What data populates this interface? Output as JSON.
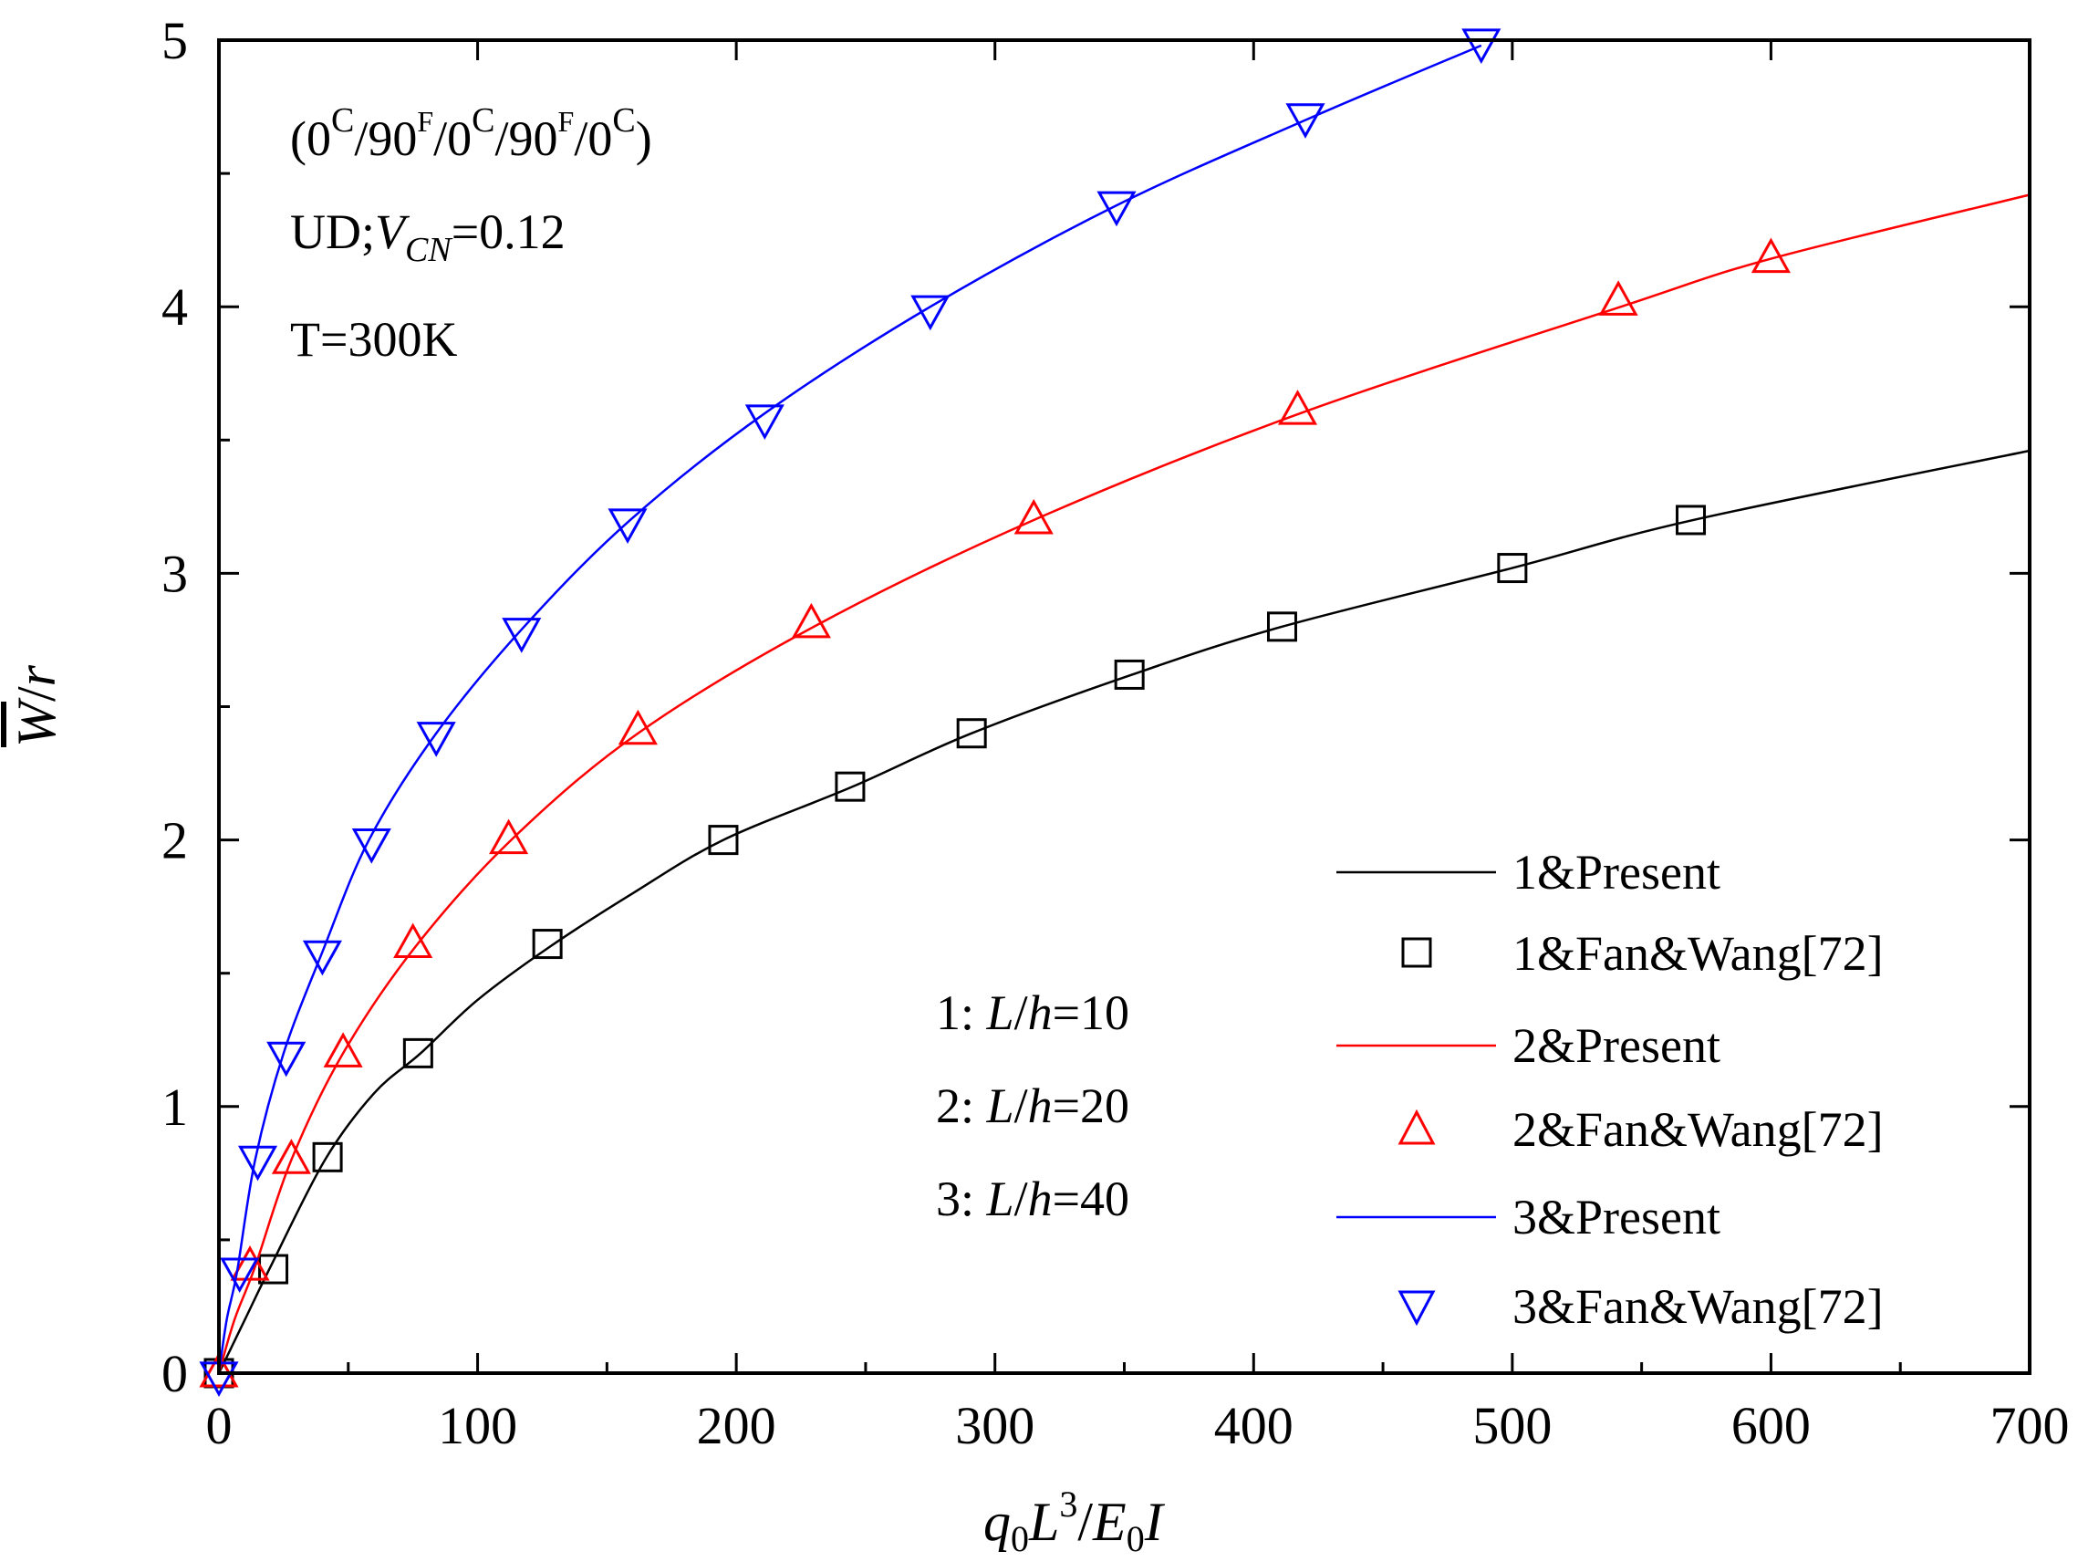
{
  "chart_data": {
    "type": "line",
    "xlabel": "q0L3/E0I",
    "ylabel": "W̄/r",
    "xlim": [
      0,
      700
    ],
    "ylim": [
      0,
      5
    ],
    "x_ticks": [
      "0",
      "100",
      "200",
      "300",
      "400",
      "500",
      "600",
      "700"
    ],
    "y_ticks": [
      "0",
      "1",
      "2",
      "3",
      "4",
      "5"
    ],
    "annotations": {
      "layup": {
        "p1": "(0",
        "s1": "C",
        "p2": "/90",
        "s2": "F",
        "p3": "/0",
        "s3": "C",
        "p4": "/90",
        "s4": "F",
        "p5": "/0",
        "s5": "C",
        "p6": ")"
      },
      "material": {
        "prefix": "UD;",
        "var": "V",
        "sub": "CN",
        "suffix": "=0.12"
      },
      "temperature": "T=300K"
    },
    "cases": [
      {
        "num": "1",
        "sep": ": ",
        "L": "L",
        "slash": "/",
        "h": "h",
        "val": "=10"
      },
      {
        "num": "2",
        "sep": ": ",
        "L": "L",
        "slash": "/",
        "h": "h",
        "val": "=20"
      },
      {
        "num": "3",
        "sep": ": ",
        "L": "L",
        "slash": "/",
        "h": "h",
        "val": "=40"
      }
    ],
    "legend": [
      {
        "label": "1&Present",
        "kind": "line",
        "color": "#000000"
      },
      {
        "label": "1&Fan&Wang[72]",
        "kind": "square",
        "color": "#000000"
      },
      {
        "label": "2&Present",
        "kind": "line",
        "color": "#ff0000"
      },
      {
        "label": "2&Fan&Wang[72]",
        "kind": "triangle-up",
        "color": "#ff0000"
      },
      {
        "label": "3&Present",
        "kind": "line",
        "color": "#0000ff"
      },
      {
        "label": "3&Fan&Wang[72]",
        "kind": "triangle-down",
        "color": "#0000ff"
      }
    ],
    "series": [
      {
        "name": "1&Present",
        "type": "line",
        "color": "#000000",
        "x": [
          0,
          10,
          20,
          41,
          60,
          78,
          100,
          128,
          160,
          195,
          245,
          291,
          353,
          411,
          500,
          570,
          700
        ],
        "y": [
          0,
          0.2,
          0.4,
          0.8,
          1.05,
          1.2,
          1.4,
          1.6,
          1.8,
          2.0,
          2.2,
          2.4,
          2.62,
          2.8,
          3.02,
          3.2,
          3.46
        ]
      },
      {
        "name": "1&Fan&Wang[72]",
        "type": "scatter",
        "marker": "square",
        "color": "#000000",
        "x": [
          0,
          21,
          42,
          77,
          127,
          195,
          244,
          291,
          352,
          411,
          500,
          569
        ],
        "y": [
          0,
          0.39,
          0.81,
          1.2,
          1.61,
          2.0,
          2.2,
          2.4,
          2.62,
          2.8,
          3.02,
          3.2
        ]
      },
      {
        "name": "2&Present",
        "type": "line",
        "color": "#ff0000",
        "x": [
          0,
          6,
          14,
          28,
          48,
          76,
          113,
          162,
          230,
          315,
          418,
          542,
          600,
          700
        ],
        "y": [
          0,
          0.2,
          0.4,
          0.8,
          1.2,
          1.6,
          2.0,
          2.4,
          2.8,
          3.2,
          3.6,
          4.0,
          4.18,
          4.42
        ]
      },
      {
        "name": "2&Fan&Wang[72]",
        "type": "scatter",
        "marker": "triangle-up",
        "color": "#ff0000",
        "x": [
          0,
          12,
          28,
          48,
          75,
          112,
          162,
          229,
          315,
          417,
          541,
          600
        ],
        "y": [
          0,
          0.4,
          0.8,
          1.2,
          1.61,
          2.0,
          2.41,
          2.81,
          3.2,
          3.61,
          4.02,
          4.18
        ]
      },
      {
        "name": "3&Present",
        "type": "line",
        "color": "#0000ff",
        "x": [
          0,
          3,
          7,
          14,
          25,
          40,
          58,
          84,
          118,
          159,
          211,
          275,
          347,
          420,
          488
        ],
        "y": [
          0,
          0.2,
          0.38,
          0.8,
          1.2,
          1.58,
          2.0,
          2.4,
          2.8,
          3.2,
          3.6,
          4.0,
          4.38,
          4.7,
          4.98
        ]
      },
      {
        "name": "3&Fan&Wang[72]",
        "type": "scatter",
        "marker": "triangle-down",
        "color": "#0000ff",
        "x": [
          0,
          8,
          15,
          26,
          40,
          59,
          84,
          117,
          158,
          211,
          275,
          347,
          420,
          488
        ],
        "y": [
          -0.01,
          0.38,
          0.8,
          1.19,
          1.57,
          1.99,
          2.39,
          2.78,
          3.19,
          3.58,
          3.99,
          4.38,
          4.71,
          4.99
        ]
      }
    ]
  }
}
